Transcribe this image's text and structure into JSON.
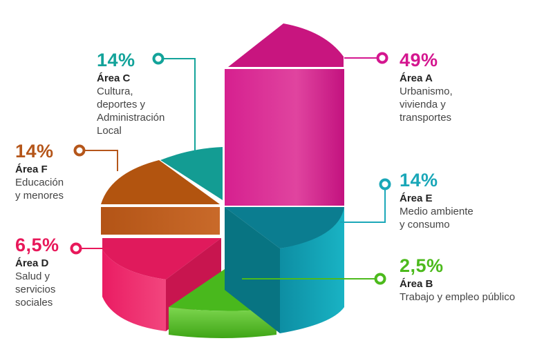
{
  "chart_data": {
    "type": "pie",
    "style": "3d-exploded",
    "slices": [
      {
        "key": "A",
        "value": 49,
        "label": "49%",
        "area": "Área A",
        "desc": "Urbanismo,\nvivienda y\ntransportes",
        "color": "#d4168f"
      },
      {
        "key": "E",
        "value": 14,
        "label": "14%",
        "area": "Área E",
        "desc": "Medio ambiente\ny consumo",
        "color": "#1aa7b8"
      },
      {
        "key": "B",
        "value": 2.5,
        "label": "2,5%",
        "area": "Área B",
        "desc": "Trabajo y empleo público",
        "color": "#4cba1c"
      },
      {
        "key": "D",
        "value": 6.5,
        "label": "6,5%",
        "area": "Área D",
        "desc": "Salud y\nservicios\nsociales",
        "color": "#e8185a"
      },
      {
        "key": "F",
        "value": 14,
        "label": "14%",
        "area": "Área F",
        "desc": "Educación\ny menores",
        "color": "#b5561a"
      },
      {
        "key": "C",
        "value": 14,
        "label": "14%",
        "area": "Área C",
        "desc": "Cultura,\ndeportes y\nAdministración\nLocal",
        "color": "#13a39a"
      }
    ]
  }
}
